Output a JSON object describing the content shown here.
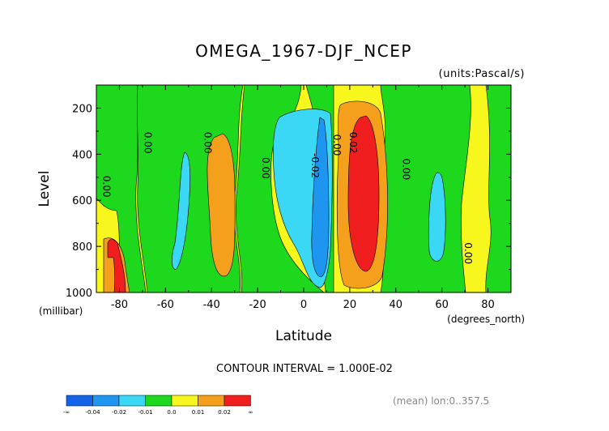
{
  "chart_data": {
    "type": "contour",
    "title": "OMEGA_1967-DJF_NCEP",
    "units": "(units:Pascal/s)",
    "xlabel": "Latitude",
    "ylabel": "Level",
    "x_unit_label": "(degrees_north)",
    "y_unit_label": "(millibar)",
    "xlim": [
      -90,
      90
    ],
    "ylim": [
      1000,
      100
    ],
    "x_ticks": [
      -80,
      -60,
      -40,
      -20,
      0,
      20,
      40,
      60,
      80
    ],
    "y_ticks": [
      200,
      400,
      600,
      800,
      1000
    ],
    "contour_interval_text": "CONTOUR INTERVAL = 1.000E-02",
    "footer_text": "(mean) lon:0..357.5",
    "contour_labels": [
      {
        "text": "0.00",
        "x": -87,
        "y": 540
      },
      {
        "text": "0.00",
        "x": -69,
        "y": 350
      },
      {
        "text": "0.00",
        "x": -43,
        "y": 350
      },
      {
        "text": "0.00",
        "x": -18,
        "y": 460
      },
      {
        "text": "-0.02",
        "x": 3.5,
        "y": 450
      },
      {
        "text": "0.00",
        "x": 13,
        "y": 360
      },
      {
        "text": "0.02",
        "x": 20,
        "y": 350
      },
      {
        "text": "0.00",
        "x": 43,
        "y": 465
      },
      {
        "text": "0.00",
        "x": 70,
        "y": 830
      }
    ],
    "colorbar": {
      "colors": [
        "#1564e8",
        "#1e96f0",
        "#3ad8f5",
        "#1ed81e",
        "#f7f71e",
        "#f5a01c",
        "#f01e1e"
      ],
      "tick_labels": [
        "-∞",
        "-0.04",
        "-0.02",
        "-0.01",
        "0.0",
        "0.01",
        "0.02",
        "∞"
      ]
    },
    "regions": [
      {
        "value": 0.0,
        "color": "#f7f71e",
        "lat": [
          -90,
          90
        ],
        "lev": [
          100,
          1000
        ]
      },
      {
        "value": -0.01,
        "color": "#1ed81e",
        "lat": [
          -84,
          -62
        ],
        "lev": [
          100,
          1000
        ]
      },
      {
        "value": 0.01,
        "color": "#f5a01c",
        "lat": [
          -50,
          -30
        ],
        "lev": [
          320,
          880
        ]
      },
      {
        "value": -0.02,
        "color": "#3ad8f5",
        "lat": [
          -55,
          -47
        ],
        "lev": [
          380,
          900
        ]
      },
      {
        "value": -0.02,
        "color": "#3ad8f5",
        "lat": [
          -8,
          15
        ],
        "lev": [
          200,
          950
        ]
      },
      {
        "value": -0.04,
        "color": "#1e96f0",
        "lat": [
          3,
          10
        ],
        "lev": [
          250,
          920
        ]
      },
      {
        "value": 0.01,
        "color": "#f5a01c",
        "lat": [
          12,
          33
        ],
        "lev": [
          150,
          950
        ]
      },
      {
        "value": 0.02,
        "color": "#f01e1e",
        "lat": [
          15,
          31
        ],
        "lev": [
          190,
          900
        ]
      },
      {
        "value": -0.02,
        "color": "#3ad8f5",
        "lat": [
          52,
          62
        ],
        "lev": [
          450,
          860
        ]
      },
      {
        "value": 0.02,
        "color": "#f01e1e",
        "lat": [
          -84,
          -78
        ],
        "lev": [
          760,
          1000
        ]
      }
    ]
  }
}
